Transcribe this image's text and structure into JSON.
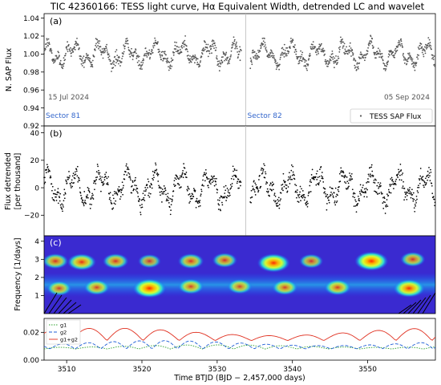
{
  "figure": {
    "title": "TIC 42360166: TESS light curve, Hα Equivalent Width, detrended LC and wavelet"
  },
  "colors": {
    "flux_points": "#555555",
    "detrended_points": "#000000",
    "sector_label": "#3366cc",
    "date_label": "#555555",
    "g1": "#2ca02c",
    "g2": "#1f5fd6",
    "g1g2": "#e03020",
    "wavelet_bg": "#3a2ad0"
  },
  "chart_data": [
    {
      "id": "a",
      "panel_label": "(a)",
      "type": "scatter",
      "ylabel": "N. SAP Flux",
      "xlim": [
        3507,
        3559
      ],
      "ylim": [
        0.92,
        1.045
      ],
      "yticks": [
        "0.92",
        "0.94",
        "0.96",
        "0.98",
        "1.00",
        "1.02",
        "1.04"
      ],
      "ytick_values": [
        0.92,
        0.94,
        0.96,
        0.98,
        1.0,
        1.02,
        1.04
      ],
      "series": [
        {
          "name": "TESS SAP Flux",
          "marker": "dot",
          "mean": 1.0,
          "amplitude": 0.015,
          "period_days": 3.6,
          "x_range": [
            3507,
            3559
          ]
        }
      ],
      "legend": {
        "label": "TESS SAP Flux",
        "position": "lower-right"
      },
      "annotations": {
        "date_left": "15 Jul 2024",
        "date_right": "05 Sep 2024",
        "sector_left": "Sector 81",
        "sector_right": "Sector 82",
        "sector_boundary_x": 3533.8
      }
    },
    {
      "id": "b",
      "panel_label": "(b)",
      "type": "scatter",
      "ylabel": [
        "Flux detrended",
        "[per thousand]"
      ],
      "xlim": [
        3507,
        3559
      ],
      "ylim": [
        -35,
        45
      ],
      "yticks": [
        "−20",
        "0",
        "20",
        "40"
      ],
      "ytick_values": [
        -20,
        0,
        20,
        40
      ],
      "series": [
        {
          "name": "",
          "marker": "dot",
          "mean": 0,
          "amplitude": 15,
          "period_days": 3.6,
          "x_range": [
            3507,
            3559
          ]
        }
      ]
    },
    {
      "id": "c",
      "panel_label": "(c)",
      "type": "heatmap",
      "ylabel": "Frequency [1/days]",
      "xlim": [
        3507,
        3559
      ],
      "ylim": [
        0,
        4.3
      ],
      "yticks": [
        "1",
        "2",
        "3",
        "4"
      ],
      "ytick_values": [
        1,
        2,
        3,
        4
      ],
      "blobs": [
        {
          "x": 3508.5,
          "y": 2.9,
          "power": 0.6
        },
        {
          "x": 3512,
          "y": 2.85,
          "power": 0.75
        },
        {
          "x": 3516.5,
          "y": 2.9,
          "power": 0.6
        },
        {
          "x": 3521,
          "y": 2.9,
          "power": 0.45
        },
        {
          "x": 3526.5,
          "y": 2.9,
          "power": 0.6
        },
        {
          "x": 3531,
          "y": 2.95,
          "power": 0.55
        },
        {
          "x": 3537.5,
          "y": 2.8,
          "power": 0.95
        },
        {
          "x": 3542.5,
          "y": 2.9,
          "power": 0.5
        },
        {
          "x": 3550.5,
          "y": 2.9,
          "power": 1.0
        },
        {
          "x": 3556,
          "y": 3.0,
          "power": 0.55
        },
        {
          "x": 3509,
          "y": 1.4,
          "power": 0.55
        },
        {
          "x": 3514,
          "y": 1.45,
          "power": 0.6
        },
        {
          "x": 3521,
          "y": 1.4,
          "power": 1.0
        },
        {
          "x": 3526.5,
          "y": 1.5,
          "power": 0.6
        },
        {
          "x": 3533,
          "y": 1.5,
          "power": 0.55
        },
        {
          "x": 3539,
          "y": 1.45,
          "power": 0.6
        },
        {
          "x": 3546,
          "y": 1.45,
          "power": 0.65
        },
        {
          "x": 3555.5,
          "y": 1.4,
          "power": 0.9
        }
      ]
    },
    {
      "id": "d",
      "type": "line",
      "xlabel": "Time BTJD (BJD − 2,457,000 days)",
      "xlim": [
        3507,
        3559
      ],
      "xticks": [
        "3510",
        "3520",
        "3530",
        "3540",
        "3550"
      ],
      "xtick_values": [
        3510,
        3520,
        3530,
        3540,
        3550
      ],
      "ylim": [
        0,
        0.03
      ],
      "yticks": [
        "0.00",
        "0.02"
      ],
      "ytick_values": [
        0.0,
        0.02
      ],
      "legend": {
        "position": "top-left"
      },
      "series": [
        {
          "name": "g1",
          "style": "dotted",
          "base": 0.008,
          "amp": 0.003,
          "period": 4.2
        },
        {
          "name": "g2",
          "style": "dashed",
          "base": 0.008,
          "amp": 0.006,
          "period": 3.4
        },
        {
          "name": "g1+g2",
          "style": "solid",
          "base": 0.014,
          "amp": 0.009,
          "period": 4.8
        }
      ]
    }
  ]
}
